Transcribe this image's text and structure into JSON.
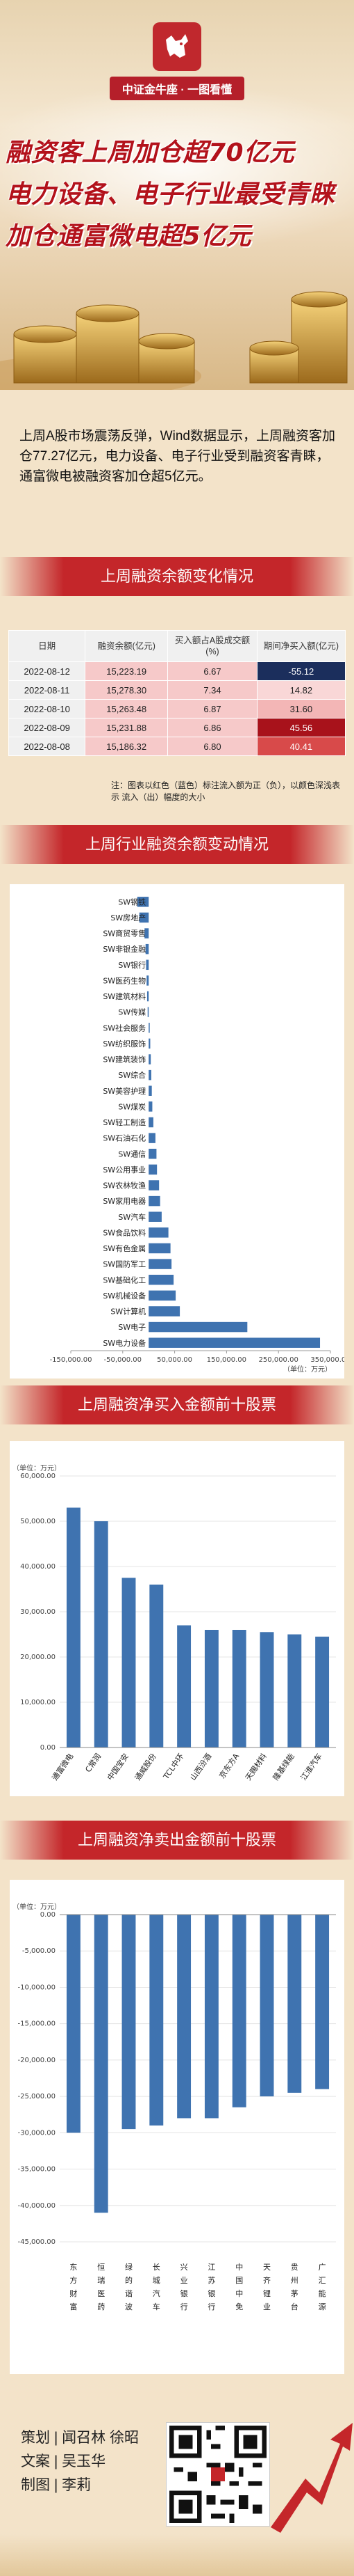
{
  "header": {
    "brand": "中证金牛座 · 一图看懂",
    "headline": [
      "融资客上周加仓超70亿元",
      "电力设备、电子行业最受青睐",
      "加仓通富微电超5亿元"
    ]
  },
  "intro": "上周A股市场震荡反弹，Wind数据显示，上周融资客加仓77.27亿元，电力设备、电子行业受到融资客青睐，通富微电被融资客加仓超5亿元。",
  "balance_section": {
    "title": "上周融资余额变化情况",
    "headers": [
      "日期",
      "融资余额(亿元)",
      "买入额占A股成交额(%)",
      "期间净买入额(亿元)"
    ],
    "rows": [
      {
        "date": "2022-08-12",
        "balance": "15,223.19",
        "pct": "6.67",
        "net": "-55.12"
      },
      {
        "date": "2022-08-11",
        "balance": "15,278.30",
        "pct": "7.34",
        "net": "14.82"
      },
      {
        "date": "2022-08-10",
        "balance": "15,263.48",
        "pct": "6.87",
        "net": "31.60"
      },
      {
        "date": "2022-08-09",
        "balance": "15,231.88",
        "pct": "6.86",
        "net": "45.56"
      },
      {
        "date": "2022-08-08",
        "balance": "15,186.32",
        "pct": "6.80",
        "net": "40.41"
      }
    ],
    "note": "注：图表以红色（蓝色）标注流入额为正（负），以颜色深浅表示 流入（出）幅度的大小"
  },
  "industry_section": {
    "title": "上周行业融资余额变动情况"
  },
  "buy_section": {
    "title": "上周融资净买入金额前十股票"
  },
  "sell_section": {
    "title": "上周融资净卖出金额前十股票"
  },
  "credits": {
    "planning_label": "策划",
    "planning": "闻召林  徐昭",
    "text_label": "文案",
    "text": "吴玉华",
    "design_label": "制图",
    "design": "李莉"
  },
  "colors": {
    "accent": "#c4262a",
    "bar": "#3f73b0",
    "bar_dark": "#2f5e98",
    "headline": "#b3121b"
  },
  "chart_data": [
    {
      "type": "bar",
      "orientation": "horizontal",
      "categories": [
        "SW钢铁",
        "SW房地产",
        "SW商贸零售",
        "SW非银金融",
        "SW银行",
        "SW医药生物",
        "SW建筑材料",
        "SW传媒",
        "SW社会服务",
        "SW纺织服饰",
        "SW建筑装饰",
        "SW综合",
        "SW美容护理",
        "SW煤炭",
        "SW轻工制造",
        "SW石油石化",
        "SW通信",
        "SW公用事业",
        "SW农林牧渔",
        "SW家用电器",
        "SW汽车",
        "SW食品饮料",
        "SW有色金属",
        "SW国防军工",
        "SW基础化工",
        "SW机械设备",
        "SW计算机",
        "SW电子",
        "SW电力设备"
      ],
      "values": [
        -22000,
        -18000,
        -8000,
        -6000,
        -5000,
        -4000,
        -3000,
        -2000,
        2000,
        3000,
        4000,
        5000,
        6000,
        7000,
        9000,
        13000,
        15000,
        16000,
        20000,
        22000,
        25000,
        38000,
        42000,
        44000,
        48000,
        52000,
        60000,
        190000,
        330000
      ],
      "xlim": [
        -150000,
        350000
      ],
      "xticks": [
        "-150,000.00",
        "-50,000.00",
        "50,000.00",
        "150,000.00",
        "250,000.00",
        "350,000.00"
      ],
      "unit": "（单位：万元）"
    },
    {
      "type": "bar",
      "categories": [
        "通富微电",
        "C常润",
        "中国宝安",
        "通威股份",
        "TCL中环",
        "山西汾酒",
        "京东方A",
        "天赐材料",
        "隆基绿能",
        "江淮汽车"
      ],
      "values": [
        53000,
        50000,
        37500,
        36000,
        27000,
        26000,
        26000,
        25500,
        25000,
        24500
      ],
      "ylim": [
        0,
        60000
      ],
      "yticks": [
        "60,000.00",
        "50,000.00",
        "40,000.00",
        "30,000.00",
        "20,000.00",
        "10,000.00",
        "0.00"
      ],
      "unit": "（单位：万元）"
    },
    {
      "type": "bar",
      "categories": [
        "东方财富",
        "恒瑞医药",
        "绿的谐波",
        "长城汽车",
        "兴业银行",
        "江苏银行",
        "中国中免",
        "天齐锂业",
        "贵州茅台",
        "广汇能源"
      ],
      "values": [
        -30000,
        -41000,
        -29500,
        -29000,
        -28000,
        -28000,
        -26500,
        -25000,
        -24500,
        -24000
      ],
      "ylim": [
        -45000,
        0
      ],
      "yticks": [
        "0.00",
        "-5,000.00",
        "-10,000.00",
        "-15,000.00",
        "-20,000.00",
        "-25,000.00",
        "-30,000.00",
        "-35,000.00",
        "-40,000.00",
        "-45,000.00"
      ],
      "unit": "（单位：万元）"
    }
  ]
}
